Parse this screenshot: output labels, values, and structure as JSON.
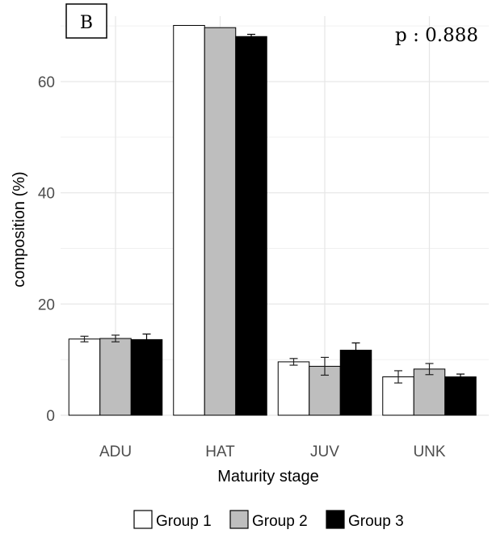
{
  "panel_label": "B",
  "annotation": "p : 0.888",
  "chart_data": {
    "type": "bar",
    "xlabel": "Maturity stage",
    "ylabel": "composition (%)",
    "ylim": [
      0,
      70
    ],
    "yticks": [
      0,
      20,
      40,
      60
    ],
    "grid": true,
    "legend_position": "bottom",
    "categories": [
      "ADU",
      "HAT",
      "JUV",
      "UNK"
    ],
    "series": [
      {
        "name": "Group 1",
        "color": "#ffffff",
        "values": [
          13.7,
          70.1,
          9.6,
          6.9
        ],
        "errors": [
          0.5,
          0,
          0.6,
          1.1
        ]
      },
      {
        "name": "Group 2",
        "color": "#bebebe",
        "values": [
          13.8,
          69.7,
          8.8,
          8.3
        ],
        "errors": [
          0.6,
          0,
          1.6,
          1.0
        ]
      },
      {
        "name": "Group 3",
        "color": "#000000",
        "values": [
          13.6,
          68.1,
          11.7,
          6.9
        ],
        "errors": [
          1.0,
          0.4,
          1.3,
          0.5
        ]
      }
    ]
  }
}
